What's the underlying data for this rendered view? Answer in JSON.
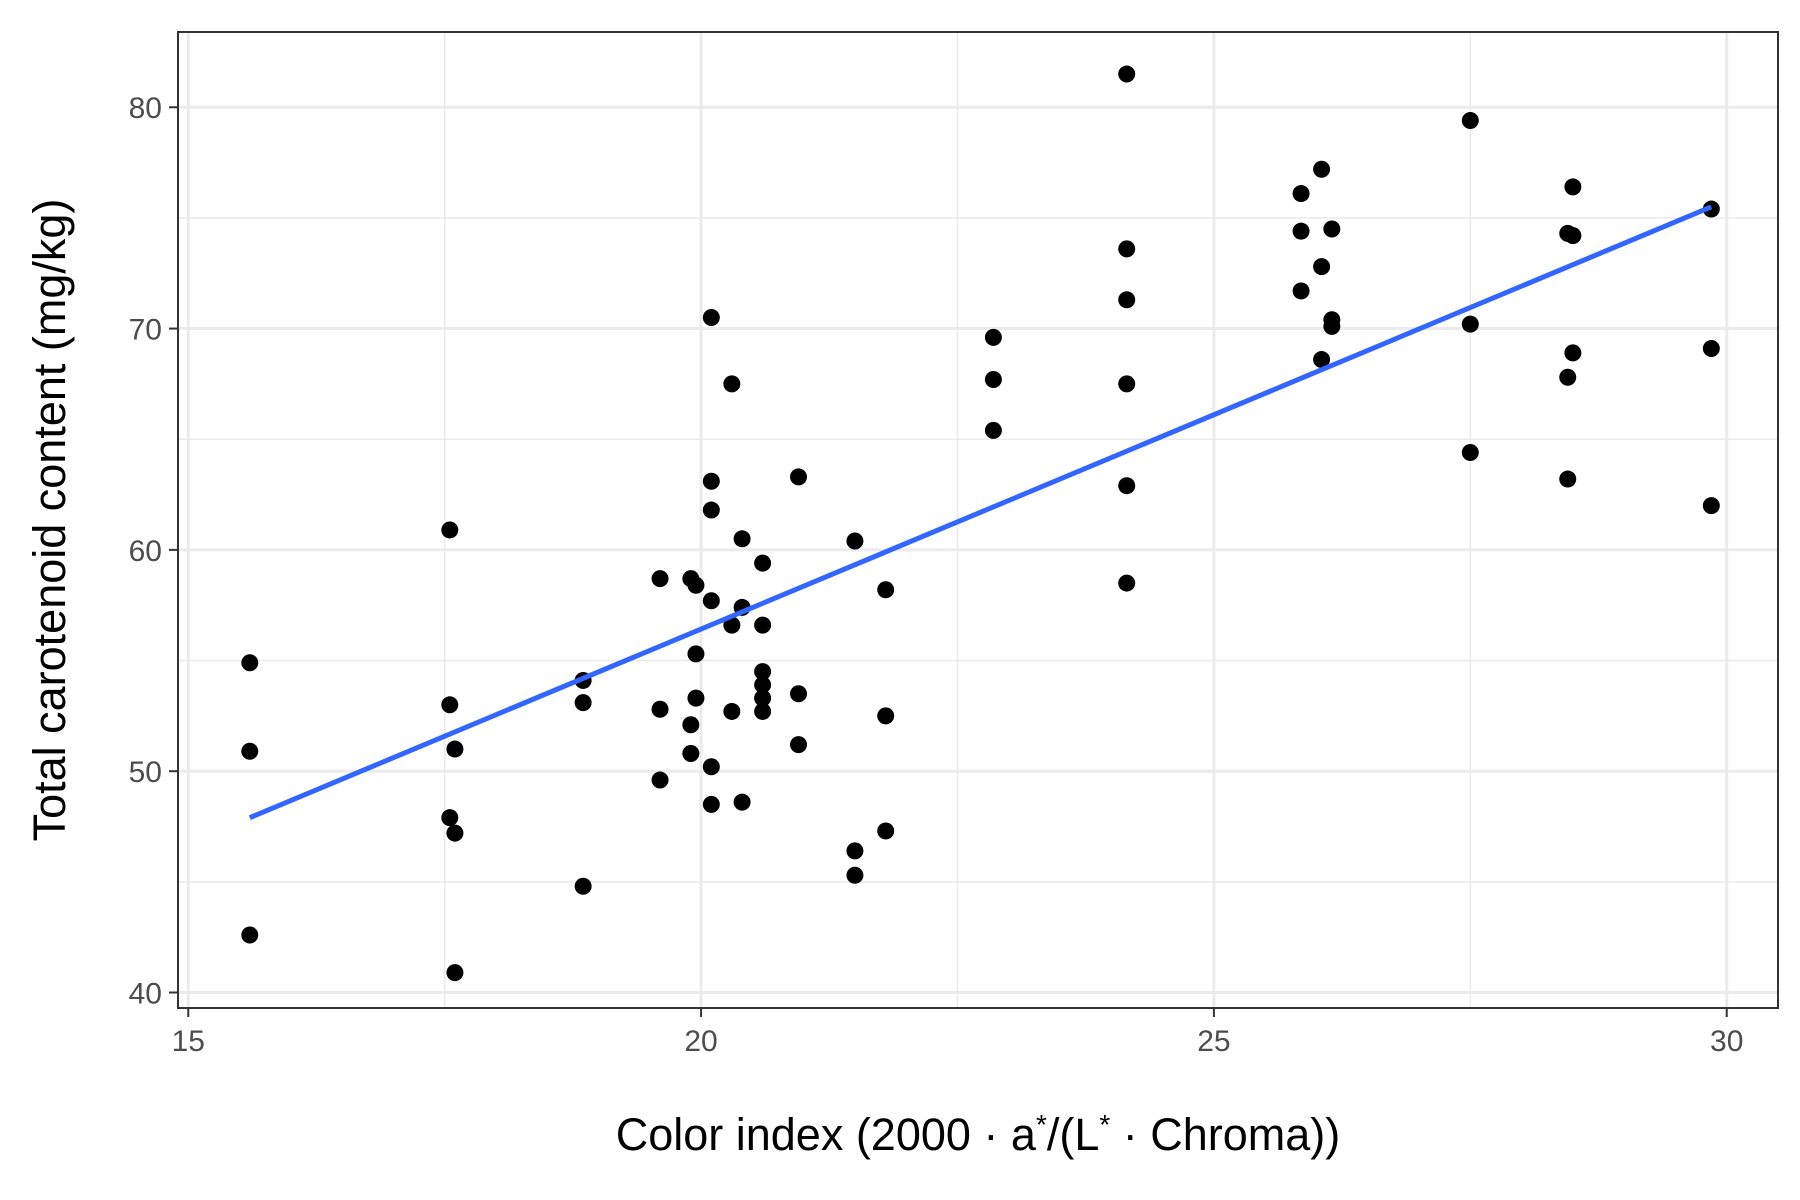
{
  "chart_data": {
    "type": "scatter",
    "title": "",
    "xlabel": "Color index (2000 · a*/(L* · Chroma))",
    "xlabel_parts": {
      "prefix": "Color index (2000 · a",
      "sup1": "*",
      "mid": "/(L",
      "sup2": "*",
      "suffix": " · Chroma))"
    },
    "ylabel": "Total carotenoid content (mg/kg)",
    "xlim": [
      14.9,
      30.5
    ],
    "ylim": [
      39.3,
      83.4
    ],
    "x_ticks": [
      15,
      20,
      25,
      30
    ],
    "y_ticks": [
      40,
      50,
      60,
      70,
      80
    ],
    "grid": true,
    "legend": "none",
    "colors": {
      "points": "#000000",
      "fit_line": "#3366ff",
      "grid": "#ebebeb",
      "panel_border": "#333333",
      "tick_label": "#4d4d4d"
    },
    "points": [
      {
        "x": 15.6,
        "y": 54.9
      },
      {
        "x": 15.6,
        "y": 50.9
      },
      {
        "x": 15.6,
        "y": 42.6
      },
      {
        "x": 17.55,
        "y": 60.9
      },
      {
        "x": 17.55,
        "y": 53.0
      },
      {
        "x": 17.6,
        "y": 51.0
      },
      {
        "x": 17.55,
        "y": 47.9
      },
      {
        "x": 17.6,
        "y": 47.2
      },
      {
        "x": 17.6,
        "y": 40.9
      },
      {
        "x": 18.85,
        "y": 54.1
      },
      {
        "x": 18.85,
        "y": 53.1
      },
      {
        "x": 18.85,
        "y": 44.8
      },
      {
        "x": 19.6,
        "y": 58.7
      },
      {
        "x": 19.6,
        "y": 52.8
      },
      {
        "x": 19.6,
        "y": 49.6
      },
      {
        "x": 19.9,
        "y": 58.7
      },
      {
        "x": 19.95,
        "y": 58.4
      },
      {
        "x": 19.95,
        "y": 55.3
      },
      {
        "x": 19.95,
        "y": 53.3
      },
      {
        "x": 19.9,
        "y": 52.1
      },
      {
        "x": 19.9,
        "y": 50.8
      },
      {
        "x": 20.1,
        "y": 70.5
      },
      {
        "x": 20.1,
        "y": 63.1
      },
      {
        "x": 20.1,
        "y": 61.8
      },
      {
        "x": 20.1,
        "y": 57.7
      },
      {
        "x": 20.1,
        "y": 50.2
      },
      {
        "x": 20.1,
        "y": 48.5
      },
      {
        "x": 20.3,
        "y": 67.5
      },
      {
        "x": 20.3,
        "y": 56.6
      },
      {
        "x": 20.3,
        "y": 52.7
      },
      {
        "x": 20.4,
        "y": 60.5
      },
      {
        "x": 20.4,
        "y": 57.4
      },
      {
        "x": 20.4,
        "y": 48.6
      },
      {
        "x": 20.6,
        "y": 59.4
      },
      {
        "x": 20.6,
        "y": 56.6
      },
      {
        "x": 20.6,
        "y": 54.5
      },
      {
        "x": 20.6,
        "y": 53.9
      },
      {
        "x": 20.6,
        "y": 53.3
      },
      {
        "x": 20.6,
        "y": 52.7
      },
      {
        "x": 20.95,
        "y": 63.3
      },
      {
        "x": 20.95,
        "y": 53.5
      },
      {
        "x": 20.95,
        "y": 51.2
      },
      {
        "x": 21.5,
        "y": 60.4
      },
      {
        "x": 21.5,
        "y": 46.4
      },
      {
        "x": 21.5,
        "y": 45.3
      },
      {
        "x": 21.8,
        "y": 58.2
      },
      {
        "x": 21.8,
        "y": 52.5
      },
      {
        "x": 21.8,
        "y": 47.3
      },
      {
        "x": 22.85,
        "y": 69.6
      },
      {
        "x": 22.85,
        "y": 67.7
      },
      {
        "x": 22.85,
        "y": 65.4
      },
      {
        "x": 24.15,
        "y": 81.5
      },
      {
        "x": 24.15,
        "y": 73.6
      },
      {
        "x": 24.15,
        "y": 71.3
      },
      {
        "x": 24.15,
        "y": 67.5
      },
      {
        "x": 24.15,
        "y": 62.9
      },
      {
        "x": 24.15,
        "y": 58.5
      },
      {
        "x": 25.85,
        "y": 76.1
      },
      {
        "x": 25.85,
        "y": 74.4
      },
      {
        "x": 25.85,
        "y": 71.7
      },
      {
        "x": 26.05,
        "y": 77.2
      },
      {
        "x": 26.05,
        "y": 72.8
      },
      {
        "x": 26.05,
        "y": 68.6
      },
      {
        "x": 26.15,
        "y": 74.5
      },
      {
        "x": 26.15,
        "y": 70.4
      },
      {
        "x": 26.15,
        "y": 70.1
      },
      {
        "x": 27.5,
        "y": 79.4
      },
      {
        "x": 27.5,
        "y": 70.2
      },
      {
        "x": 27.5,
        "y": 64.4
      },
      {
        "x": 28.45,
        "y": 74.3
      },
      {
        "x": 28.5,
        "y": 74.2
      },
      {
        "x": 28.5,
        "y": 76.4
      },
      {
        "x": 28.5,
        "y": 68.9
      },
      {
        "x": 28.45,
        "y": 67.8
      },
      {
        "x": 28.45,
        "y": 63.2
      },
      {
        "x": 29.85,
        "y": 75.4
      },
      {
        "x": 29.85,
        "y": 69.1
      },
      {
        "x": 29.85,
        "y": 62.0
      }
    ],
    "fit_line": {
      "x": [
        15.6,
        29.85
      ],
      "y": [
        47.9,
        75.5
      ]
    }
  }
}
